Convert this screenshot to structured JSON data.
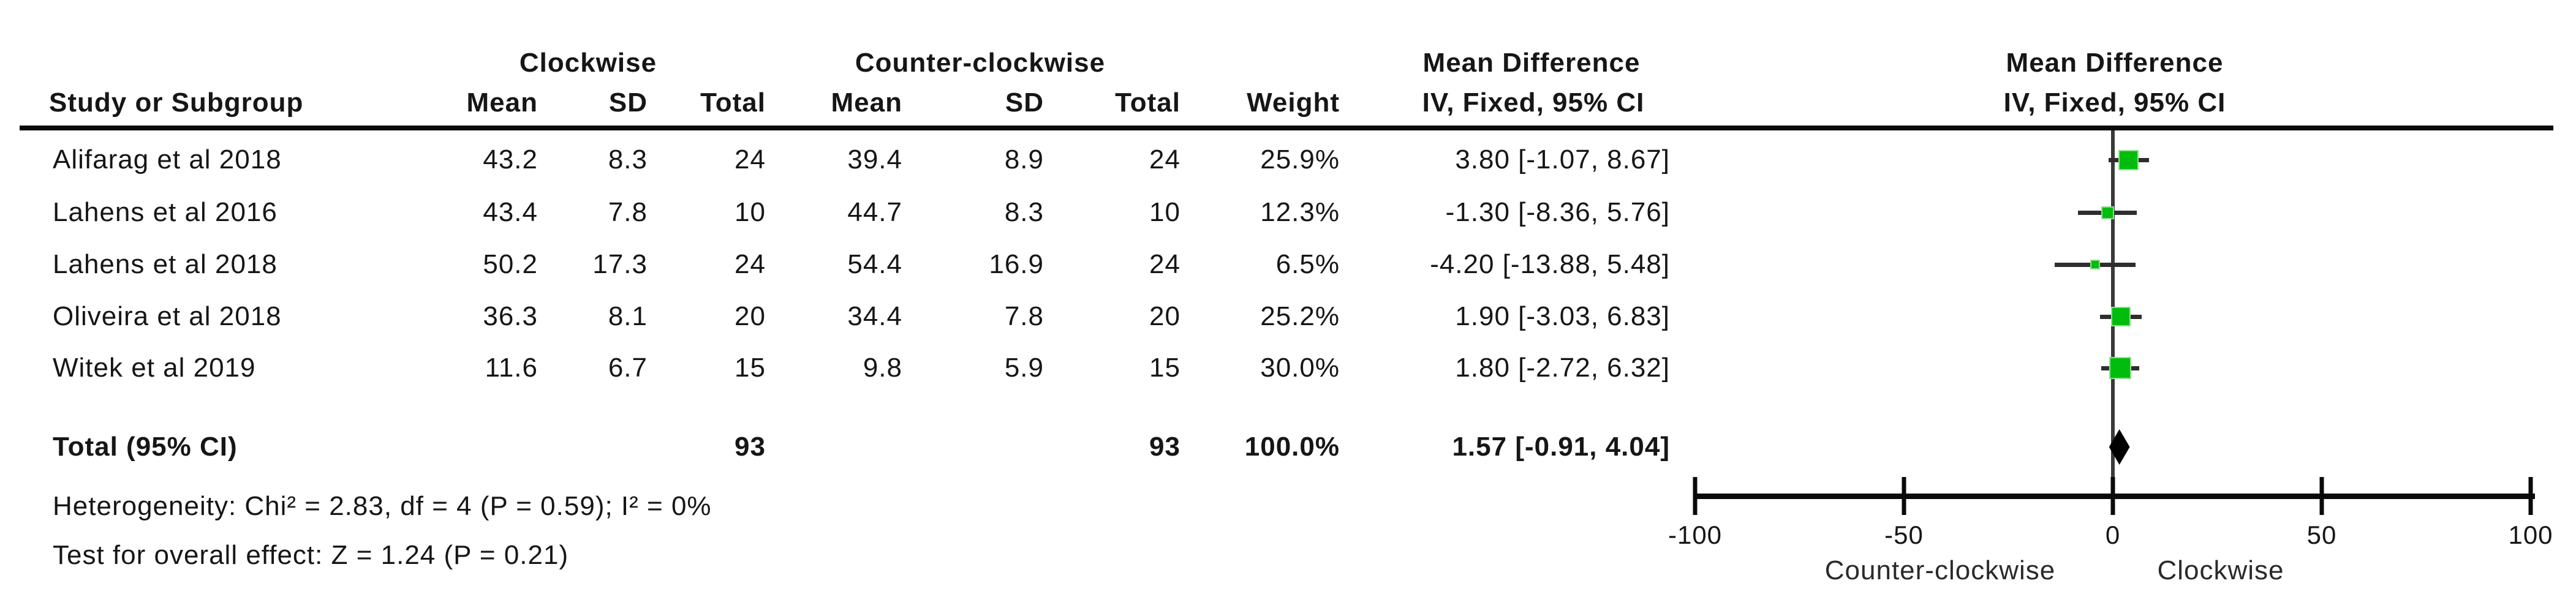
{
  "table": {
    "group_headers": {
      "clockwise": "Clockwise",
      "counter_clockwise": "Counter-clockwise",
      "mean_difference": "Mean Difference"
    },
    "column_headers": {
      "study": "Study or Subgroup",
      "mean": "Mean",
      "sd": "SD",
      "total": "Total",
      "weight": "Weight",
      "iv_fixed": "IV, Fixed, 95% CI"
    },
    "rows": [
      {
        "study": "Alifarag et al 2018",
        "cw_mean": "43.2",
        "cw_sd": "8.3",
        "cw_total": "24",
        "ccw_mean": "39.4",
        "ccw_sd": "8.9",
        "ccw_total": "24",
        "weight": "25.9%",
        "md_ci": "3.80 [-1.07, 8.67]",
        "estimate": 3.8,
        "ci_lower": -1.07,
        "ci_upper": 8.67,
        "weight_pct": 25.9
      },
      {
        "study": "Lahens et al 2016",
        "cw_mean": "43.4",
        "cw_sd": "7.8",
        "cw_total": "10",
        "ccw_mean": "44.7",
        "ccw_sd": "8.3",
        "ccw_total": "10",
        "weight": "12.3%",
        "md_ci": "-1.30 [-8.36, 5.76]",
        "estimate": -1.3,
        "ci_lower": -8.36,
        "ci_upper": 5.76,
        "weight_pct": 12.3
      },
      {
        "study": "Lahens et al 2018",
        "cw_mean": "50.2",
        "cw_sd": "17.3",
        "cw_total": "24",
        "ccw_mean": "54.4",
        "ccw_sd": "16.9",
        "ccw_total": "24",
        "weight": "6.5%",
        "md_ci": "-4.20 [-13.88, 5.48]",
        "estimate": -4.2,
        "ci_lower": -13.88,
        "ci_upper": 5.48,
        "weight_pct": 6.5
      },
      {
        "study": "Oliveira et al 2018",
        "cw_mean": "36.3",
        "cw_sd": "8.1",
        "cw_total": "20",
        "ccw_mean": "34.4",
        "ccw_sd": "7.8",
        "ccw_total": "20",
        "weight": "25.2%",
        "md_ci": "1.90 [-3.03, 6.83]",
        "estimate": 1.9,
        "ci_lower": -3.03,
        "ci_upper": 6.83,
        "weight_pct": 25.2
      },
      {
        "study": "Witek et al 2019",
        "cw_mean": "11.6",
        "cw_sd": "6.7",
        "cw_total": "15",
        "ccw_mean": "9.8",
        "ccw_sd": "5.9",
        "ccw_total": "15",
        "weight": "30.0%",
        "md_ci": "1.80 [-2.72, 6.32]",
        "estimate": 1.8,
        "ci_lower": -2.72,
        "ci_upper": 6.32,
        "weight_pct": 30.0
      }
    ],
    "total_row": {
      "label": "Total (95% CI)",
      "cw_total": "93",
      "ccw_total": "93",
      "weight": "100.0%",
      "md_ci": "1.57 [-0.91, 4.04]",
      "estimate": 1.57,
      "ci_lower": -0.91,
      "ci_upper": 4.04
    },
    "footer": {
      "heterogeneity": "Heterogeneity: Chi² = 2.83, df = 4 (P = 0.59); I² = 0%",
      "overall_effect": "Test for overall effect: Z = 1.24 (P = 0.21)"
    }
  },
  "plot": {
    "colors": {
      "marker_green": "#00BD0D",
      "marker_edge_green": "#8fdf8f",
      "ci_line": "#2e2e2e",
      "zero_line": "#3a3a3a",
      "axis_black": "#0a0a0a"
    }
  },
  "chart_data": {
    "type": "scatter",
    "subtype": "forest_plot_fixed_effect",
    "title": "Mean Difference",
    "effect_measure": "IV, Fixed, 95% CI",
    "studies": [
      {
        "label": "Alifarag et al 2018",
        "estimate": 3.8,
        "ci_lower": -1.07,
        "ci_upper": 8.67,
        "weight_pct": 25.9
      },
      {
        "label": "Lahens et al 2016",
        "estimate": -1.3,
        "ci_lower": -8.36,
        "ci_upper": 5.76,
        "weight_pct": 12.3
      },
      {
        "label": "Lahens et al 2018",
        "estimate": -4.2,
        "ci_lower": -13.88,
        "ci_upper": 5.48,
        "weight_pct": 6.5
      },
      {
        "label": "Oliveira et al 2018",
        "estimate": 1.9,
        "ci_lower": -3.03,
        "ci_upper": 6.83,
        "weight_pct": 25.2
      },
      {
        "label": "Witek et al 2019",
        "estimate": 1.8,
        "ci_lower": -2.72,
        "ci_upper": 6.32,
        "weight_pct": 30.0
      }
    ],
    "total": {
      "label": "Total (95% CI)",
      "estimate": 1.57,
      "ci_lower": -0.91,
      "ci_upper": 4.04,
      "weight_pct": 100.0
    },
    "x_axis": {
      "ticks": [
        -100,
        -50,
        0,
        50,
        100
      ],
      "range": [
        -100,
        100
      ],
      "label_left": "Counter-clockwise",
      "label_right": "Clockwise",
      "grid": false
    },
    "heterogeneity": {
      "chi2": 2.83,
      "df": 4,
      "p": 0.59,
      "i2_pct": 0
    },
    "overall_effect": {
      "z": 1.24,
      "p": 0.21
    }
  }
}
